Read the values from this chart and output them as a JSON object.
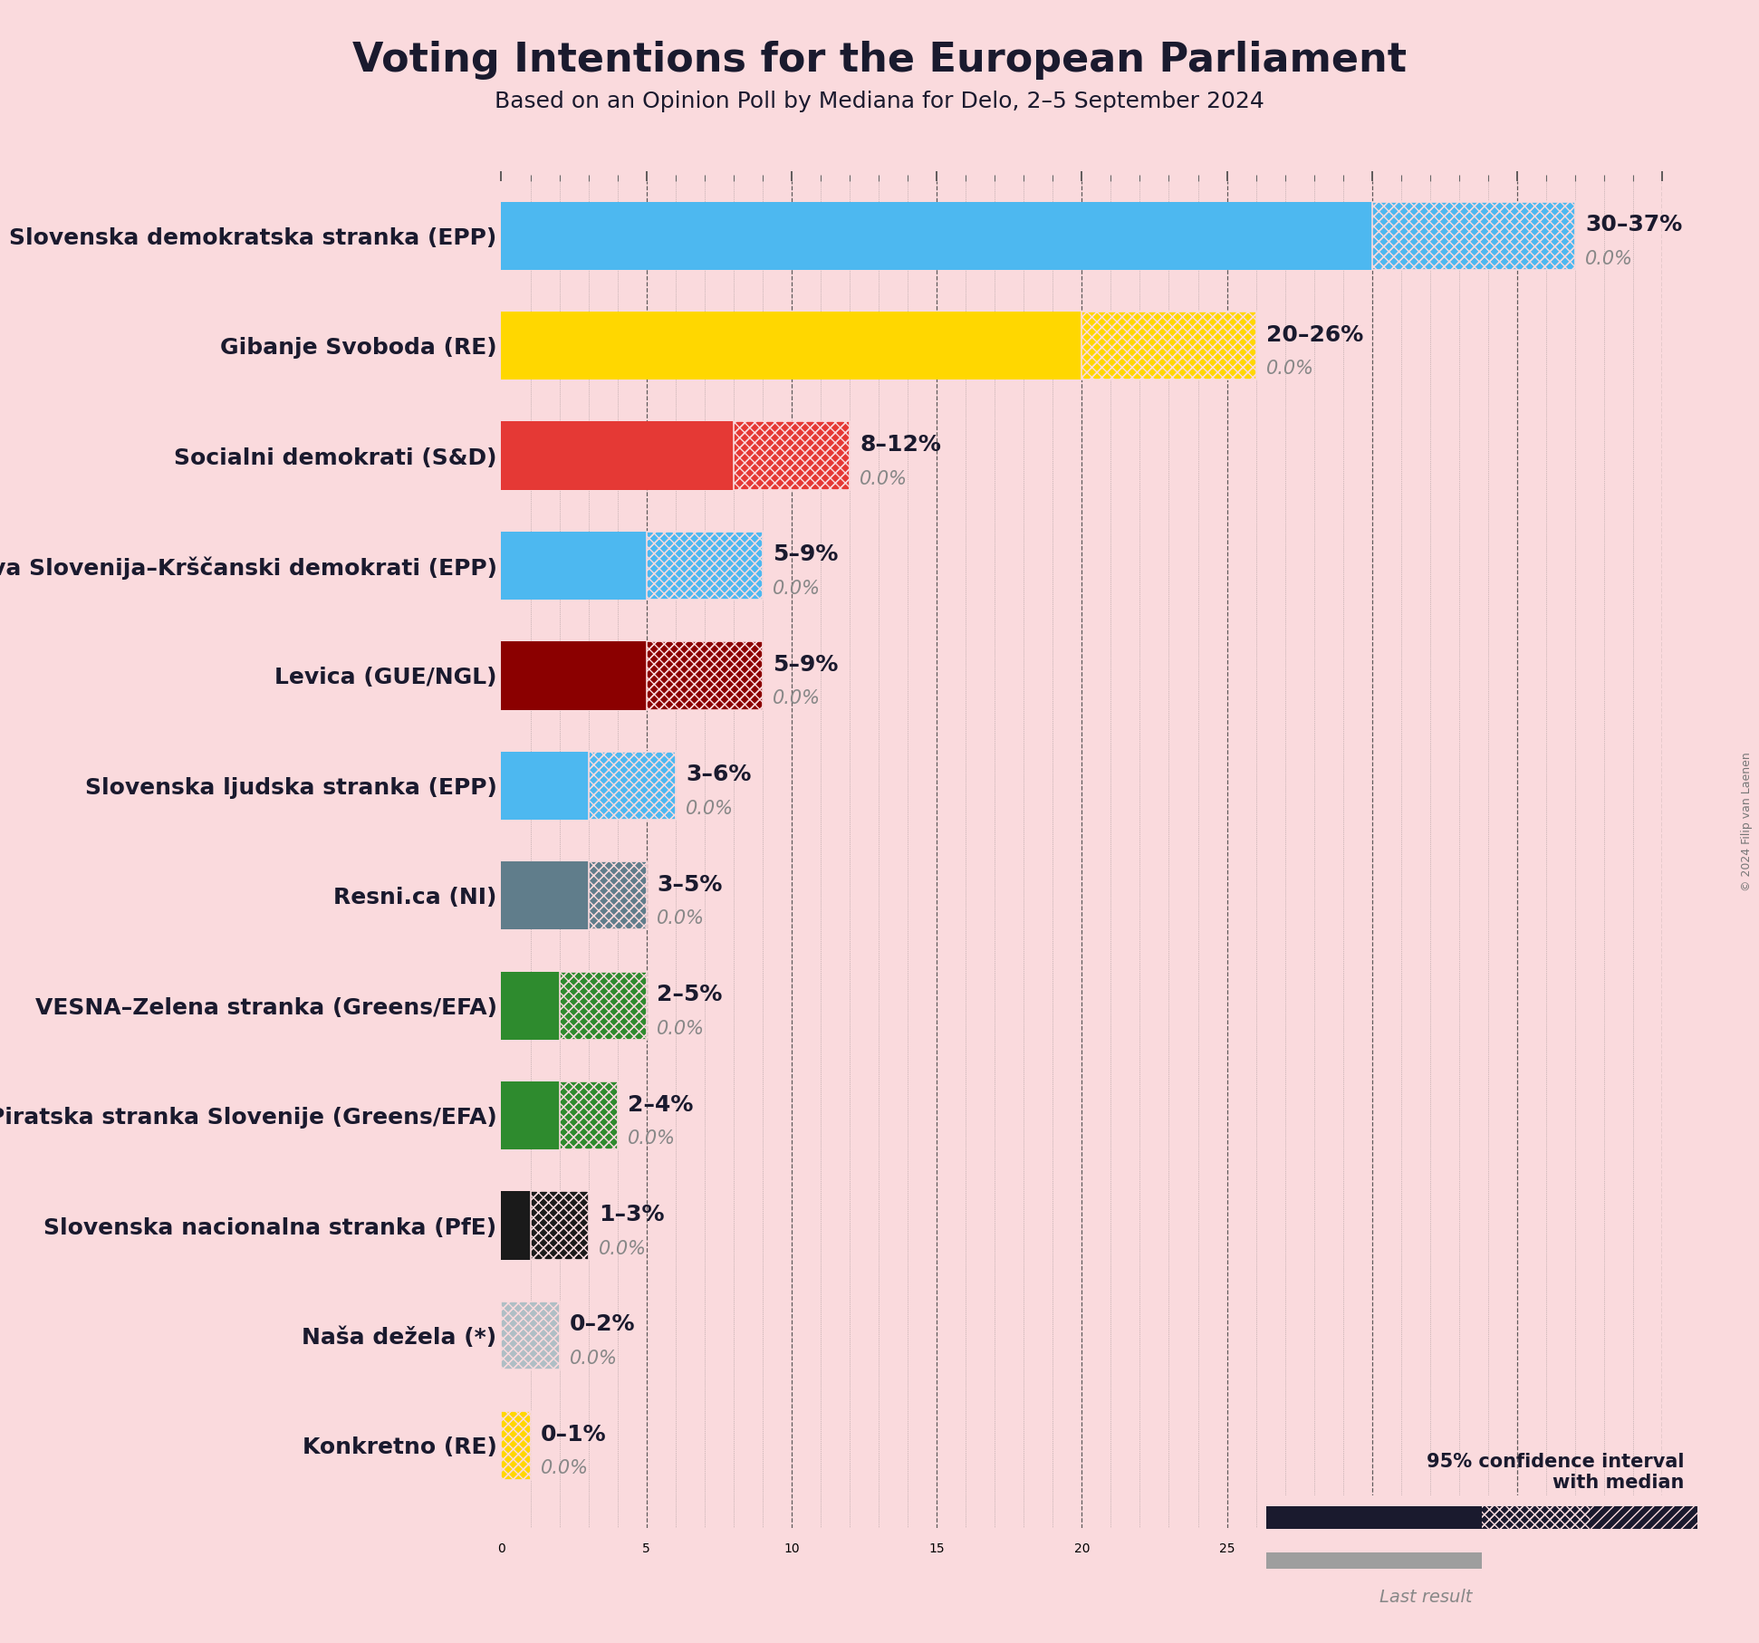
{
  "title": "Voting Intentions for the European Parliament",
  "subtitle": "Based on an Opinion Poll by Mediana for Delo, 2–5 September 2024",
  "copyright": "© 2024 Filip van Laenen",
  "background_color": "#fadadd",
  "parties": [
    {
      "name": "Slovenska demokratska stranka (EPP)",
      "low": 30,
      "high": 37,
      "median": 30,
      "last": 0.0,
      "color": "#4db8f0"
    },
    {
      "name": "Gibanje Svoboda (RE)",
      "low": 20,
      "high": 26,
      "median": 20,
      "last": 0.0,
      "color": "#FFD700"
    },
    {
      "name": "Socialni demokrati (S&D)",
      "low": 8,
      "high": 12,
      "median": 8,
      "last": 0.0,
      "color": "#e53935"
    },
    {
      "name": "Nova Slovenija–Krščanski demokrati (EPP)",
      "low": 5,
      "high": 9,
      "median": 5,
      "last": 0.0,
      "color": "#4db8f0"
    },
    {
      "name": "Levica (GUE/NGL)",
      "low": 5,
      "high": 9,
      "median": 5,
      "last": 0.0,
      "color": "#8B0000"
    },
    {
      "name": "Slovenska ljudska stranka (EPP)",
      "low": 3,
      "high": 6,
      "median": 3,
      "last": 0.0,
      "color": "#4db8f0"
    },
    {
      "name": "Resni.ca (NI)",
      "low": 3,
      "high": 5,
      "median": 3,
      "last": 0.0,
      "color": "#607d8b"
    },
    {
      "name": "VESNA–Zelena stranka (Greens/EFA)",
      "low": 2,
      "high": 5,
      "median": 2,
      "last": 0.0,
      "color": "#2e8b2e"
    },
    {
      "name": "Piratska stranka Slovenije (Greens/EFA)",
      "low": 2,
      "high": 4,
      "median": 2,
      "last": 0.0,
      "color": "#2e8b2e"
    },
    {
      "name": "Slovenska nacionalna stranka (PfE)",
      "low": 1,
      "high": 3,
      "median": 1,
      "last": 0.0,
      "color": "#1a1a1a"
    },
    {
      "name": "Naša dežela (*)",
      "low": 0,
      "high": 2,
      "median": 0,
      "last": 0.0,
      "color": "#b0bec5"
    },
    {
      "name": "Konkretno (RE)",
      "low": 0,
      "high": 1,
      "median": 0,
      "last": 0.0,
      "color": "#FFD700"
    }
  ],
  "xlim": [
    0,
    40
  ],
  "label_color": "#1a1a2e",
  "gray_color": "#888888",
  "last_color": "#9e9e9e",
  "range_label_fontsize": 18,
  "last_label_fontsize": 15,
  "party_label_fontsize": 18,
  "title_fontsize": 32,
  "subtitle_fontsize": 18,
  "bar_height": 0.62,
  "bar_spacing": 1.0
}
